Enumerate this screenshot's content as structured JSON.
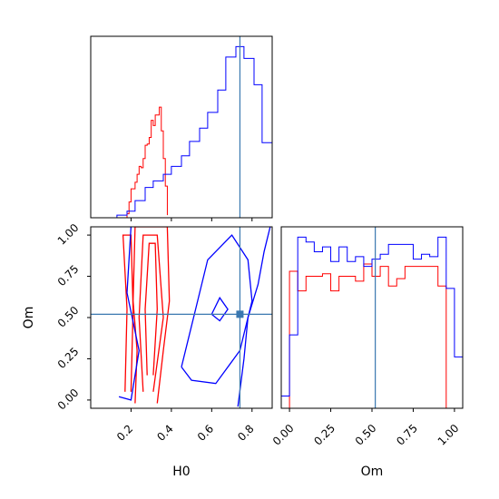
{
  "chart_data": [
    {
      "type": "histogram",
      "panel": "H0 marginal (top-left)",
      "xlim": [
        0.0,
        0.9
      ],
      "truth": 0.74,
      "series": [
        {
          "color": "#ff0000",
          "bins": [
            0.18,
            0.19,
            0.2,
            0.21,
            0.22,
            0.23,
            0.24,
            0.25,
            0.26,
            0.27,
            0.28,
            0.29,
            0.3,
            0.31,
            0.32,
            0.33,
            0.34,
            0.35,
            0.36,
            0.37,
            0.38
          ],
          "counts": [
            3,
            12,
            22,
            22,
            27,
            33,
            39,
            38,
            45,
            55,
            56,
            61,
            74,
            70,
            78,
            78,
            84,
            66,
            45,
            24,
            2
          ]
        },
        {
          "color": "#0000ff",
          "bins": [
            0.13,
            0.18,
            0.22,
            0.27,
            0.31,
            0.36,
            0.4,
            0.45,
            0.49,
            0.54,
            0.58,
            0.63,
            0.67,
            0.72,
            0.76,
            0.81,
            0.85,
            0.9
          ],
          "counts": [
            2,
            5,
            13,
            23,
            28,
            33,
            39,
            47,
            58,
            68,
            80,
            97,
            122,
            130,
            121,
            101,
            57,
            14
          ]
        }
      ]
    },
    {
      "type": "contour",
      "panel": "H0 vs Om (bottom-left)",
      "xlabel": "H0",
      "ylabel": "Om",
      "xlim": [
        0.0,
        0.9
      ],
      "ylim": [
        -0.05,
        1.05
      ],
      "xticks": [
        "0.2",
        "0.4",
        "0.6",
        "0.8"
      ],
      "yticks": [
        "0.00",
        "0.25",
        "0.50",
        "0.75",
        "1.00"
      ],
      "truth": [
        0.74,
        0.52
      ],
      "series": [
        {
          "color": "#ff0000",
          "levels": [
            [
              [
                0.22,
                -0.02
              ],
              [
                0.23,
                0.3
              ],
              [
                0.21,
                0.6
              ],
              [
                0.22,
                1.05
              ],
              [
                0.38,
                1.05
              ],
              [
                0.39,
                0.6
              ],
              [
                0.36,
                0.3
              ],
              [
                0.33,
                -0.02
              ]
            ],
            [
              [
                0.26,
                0.05
              ],
              [
                0.24,
                0.5
              ],
              [
                0.26,
                1.0
              ],
              [
                0.33,
                1.0
              ],
              [
                0.36,
                0.5
              ],
              [
                0.31,
                0.05
              ]
            ],
            [
              [
                0.28,
                0.15
              ],
              [
                0.27,
                0.55
              ],
              [
                0.29,
                0.95
              ],
              [
                0.32,
                0.95
              ],
              [
                0.33,
                0.55
              ],
              [
                0.31,
                0.15
              ]
            ],
            [
              [
                0.17,
                0.05
              ],
              [
                0.18,
                0.55
              ],
              [
                0.16,
                1.0
              ],
              [
                0.2,
                1.0
              ],
              [
                0.21,
                0.55
              ],
              [
                0.2,
                0.05
              ]
            ]
          ]
        },
        {
          "color": "#0000ff",
          "levels": [
            [
              [
                0.73,
                -0.04
              ],
              [
                0.76,
                0.25
              ],
              [
                0.78,
                0.5
              ],
              [
                0.83,
                0.7
              ],
              [
                0.86,
                0.9
              ],
              [
                0.89,
                1.05
              ]
            ],
            [
              [
                0.45,
                0.2
              ],
              [
                0.52,
                0.55
              ],
              [
                0.58,
                0.85
              ],
              [
                0.7,
                1.0
              ],
              [
                0.78,
                0.85
              ],
              [
                0.8,
                0.6
              ],
              [
                0.74,
                0.3
              ],
              [
                0.62,
                0.1
              ],
              [
                0.5,
                0.12
              ],
              [
                0.45,
                0.2
              ]
            ],
            [
              [
                0.14,
                0.02
              ],
              [
                0.2,
                0.0
              ],
              [
                0.24,
                0.3
              ],
              [
                0.18,
                0.65
              ],
              [
                0.2,
                1.05
              ]
            ],
            [
              [
                0.6,
                0.52
              ],
              [
                0.64,
                0.62
              ],
              [
                0.68,
                0.55
              ],
              [
                0.64,
                0.48
              ],
              [
                0.6,
                0.52
              ]
            ]
          ]
        }
      ]
    },
    {
      "type": "histogram",
      "panel": "Om marginal (bottom-right)",
      "xlabel": "Om",
      "xlim": [
        -0.05,
        1.05
      ],
      "xticks": [
        "0.00",
        "0.25",
        "0.50",
        "0.75",
        "1.00"
      ],
      "truth": 0.52,
      "series": [
        {
          "color": "#ff0000",
          "bins": [
            -0.05,
            0.0,
            0.05,
            0.1,
            0.15,
            0.2,
            0.25,
            0.3,
            0.35,
            0.4,
            0.45,
            0.5,
            0.55,
            0.6,
            0.65,
            0.7,
            0.75,
            0.8,
            0.85,
            0.9,
            0.95,
            1.0
          ],
          "counts": [
            0,
            56,
            48,
            54,
            54,
            55,
            48,
            54,
            54,
            52,
            59,
            54,
            58,
            50,
            53,
            58,
            58,
            58,
            58,
            50,
            0
          ]
        },
        {
          "color": "#0000ff",
          "bins": [
            -0.05,
            0.0,
            0.05,
            0.1,
            0.15,
            0.2,
            0.25,
            0.3,
            0.35,
            0.4,
            0.45,
            0.5,
            0.55,
            0.6,
            0.65,
            0.7,
            0.75,
            0.8,
            0.85,
            0.9,
            0.95,
            1.0,
            1.05
          ],
          "counts": [
            5,
            30,
            70,
            68,
            64,
            66,
            60,
            66,
            60,
            62,
            58,
            61,
            63,
            67,
            67,
            67,
            61,
            63,
            62,
            70,
            49,
            21
          ]
        }
      ]
    }
  ]
}
